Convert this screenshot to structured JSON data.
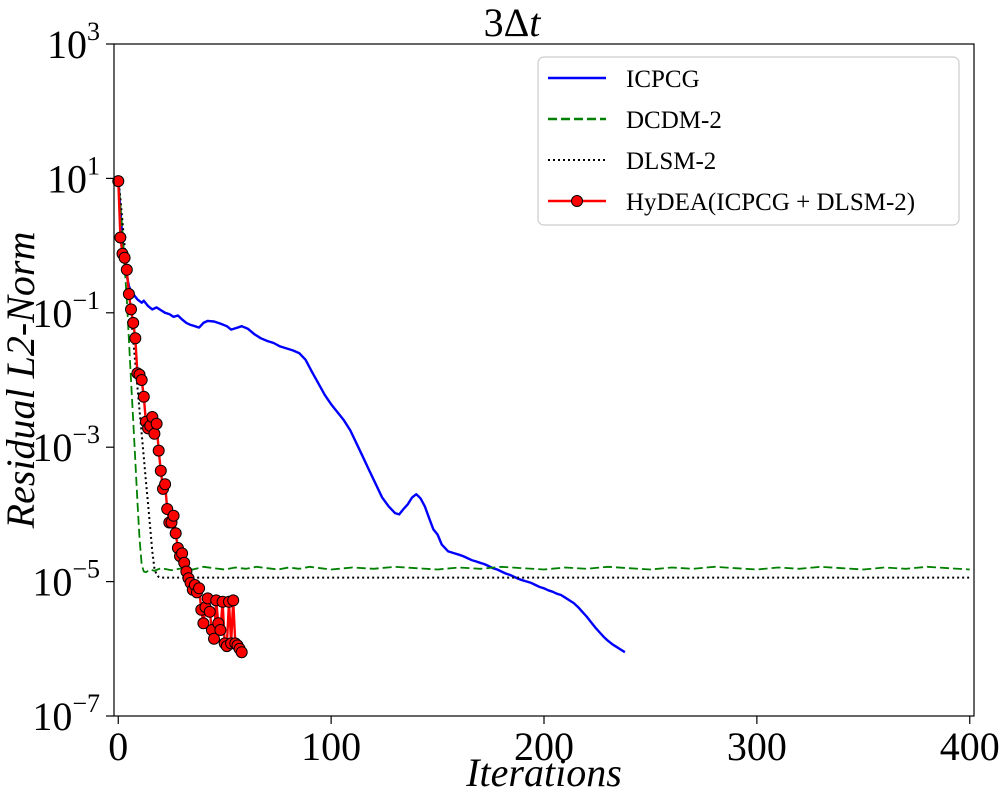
{
  "chart_data": {
    "type": "line",
    "title": "3Δt",
    "xlabel": "Iterations",
    "ylabel": "Residual L2-Norm",
    "xlim": [
      -2,
      402
    ],
    "ylim_log10": [
      -7,
      3
    ],
    "yscale": "log",
    "x_ticks": [
      0,
      100,
      200,
      300,
      400
    ],
    "x_tick_labels": [
      "0",
      "100",
      "200",
      "300",
      "400"
    ],
    "y_ticks_log10": [
      -7,
      -5,
      -3,
      -1,
      1,
      3
    ],
    "y_tick_base": "10",
    "y_tick_exponents": [
      "−7",
      "−5",
      "−3",
      "−1",
      "1",
      "3"
    ],
    "legend_position": "top-right",
    "series": [
      {
        "name": "ICPCG",
        "color": "#0000ff",
        "style": "solid",
        "points_log10": [
          [
            0,
            1.0
          ],
          [
            1,
            0.5
          ],
          [
            2,
            0.1
          ],
          [
            3,
            -0.25
          ],
          [
            4,
            -0.45
          ],
          [
            5,
            -0.6
          ],
          [
            6,
            -0.68
          ],
          [
            7,
            -0.72
          ],
          [
            9,
            -0.8
          ],
          [
            11,
            -0.85
          ],
          [
            12,
            -0.82
          ],
          [
            14,
            -0.9
          ],
          [
            16,
            -0.95
          ],
          [
            18,
            -0.92
          ],
          [
            20,
            -0.96
          ],
          [
            22,
            -1.0
          ],
          [
            24,
            -1.02
          ],
          [
            26,
            -1.06
          ],
          [
            28,
            -1.04
          ],
          [
            30,
            -1.1
          ],
          [
            32,
            -1.15
          ],
          [
            34,
            -1.18
          ],
          [
            36,
            -1.2
          ],
          [
            38,
            -1.22
          ],
          [
            40,
            -1.15
          ],
          [
            42,
            -1.12
          ],
          [
            45,
            -1.13
          ],
          [
            48,
            -1.16
          ],
          [
            51,
            -1.2
          ],
          [
            53,
            -1.25
          ],
          [
            56,
            -1.22
          ],
          [
            58,
            -1.2
          ],
          [
            61,
            -1.24
          ],
          [
            64,
            -1.32
          ],
          [
            67,
            -1.38
          ],
          [
            70,
            -1.42
          ],
          [
            73,
            -1.45
          ],
          [
            76,
            -1.5
          ],
          [
            79,
            -1.53
          ],
          [
            82,
            -1.56
          ],
          [
            85,
            -1.6
          ],
          [
            88,
            -1.7
          ],
          [
            91,
            -1.88
          ],
          [
            94,
            -2.05
          ],
          [
            97,
            -2.22
          ],
          [
            100,
            -2.36
          ],
          [
            103,
            -2.48
          ],
          [
            106,
            -2.6
          ],
          [
            109,
            -2.75
          ],
          [
            112,
            -2.95
          ],
          [
            115,
            -3.15
          ],
          [
            118,
            -3.35
          ],
          [
            121,
            -3.55
          ],
          [
            124,
            -3.75
          ],
          [
            127,
            -3.88
          ],
          [
            130,
            -3.98
          ],
          [
            132,
            -4.0
          ],
          [
            134,
            -3.92
          ],
          [
            136,
            -3.85
          ],
          [
            138,
            -3.75
          ],
          [
            140,
            -3.7
          ],
          [
            142,
            -3.76
          ],
          [
            144,
            -3.88
          ],
          [
            146,
            -4.05
          ],
          [
            148,
            -4.22
          ],
          [
            150,
            -4.3
          ],
          [
            152,
            -4.45
          ],
          [
            155,
            -4.55
          ],
          [
            158,
            -4.58
          ],
          [
            160,
            -4.6
          ],
          [
            162,
            -4.62
          ],
          [
            164,
            -4.65
          ],
          [
            166,
            -4.68
          ],
          [
            168,
            -4.7
          ],
          [
            170,
            -4.72
          ],
          [
            172,
            -4.74
          ],
          [
            174,
            -4.77
          ],
          [
            176,
            -4.8
          ],
          [
            178,
            -4.82
          ],
          [
            180,
            -4.85
          ],
          [
            182,
            -4.88
          ],
          [
            184,
            -4.9
          ],
          [
            186,
            -4.93
          ],
          [
            188,
            -4.96
          ],
          [
            190,
            -4.98
          ],
          [
            192,
            -5.0
          ],
          [
            194,
            -5.02
          ],
          [
            196,
            -5.05
          ],
          [
            198,
            -5.08
          ],
          [
            200,
            -5.1
          ],
          [
            202,
            -5.13
          ],
          [
            204,
            -5.15
          ],
          [
            206,
            -5.18
          ],
          [
            208,
            -5.2
          ],
          [
            210,
            -5.24
          ],
          [
            212,
            -5.28
          ],
          [
            214,
            -5.32
          ],
          [
            216,
            -5.38
          ],
          [
            218,
            -5.45
          ],
          [
            220,
            -5.52
          ],
          [
            222,
            -5.6
          ],
          [
            224,
            -5.68
          ],
          [
            226,
            -5.75
          ],
          [
            228,
            -5.82
          ],
          [
            230,
            -5.88
          ],
          [
            232,
            -5.93
          ],
          [
            234,
            -5.97
          ],
          [
            236,
            -6.01
          ],
          [
            238,
            -6.05
          ]
        ]
      },
      {
        "name": "DCDM-2",
        "color": "#008000",
        "style": "dashed",
        "points_log10": [
          [
            0,
            1.0
          ],
          [
            1,
            0.6
          ],
          [
            2,
            0.2
          ],
          [
            3,
            -0.3
          ],
          [
            4,
            -0.8
          ],
          [
            5,
            -1.4
          ],
          [
            6,
            -2.0
          ],
          [
            7,
            -2.6
          ],
          [
            8,
            -3.2
          ],
          [
            9,
            -3.8
          ],
          [
            10,
            -4.35
          ],
          [
            11,
            -4.75
          ],
          [
            12,
            -4.85
          ],
          [
            13,
            -4.86
          ],
          [
            15,
            -4.82
          ],
          [
            17,
            -4.84
          ],
          [
            20,
            -4.8
          ],
          [
            25,
            -4.83
          ],
          [
            30,
            -4.8
          ],
          [
            35,
            -4.82
          ],
          [
            40,
            -4.78
          ],
          [
            45,
            -4.8
          ],
          [
            50,
            -4.82
          ],
          [
            55,
            -4.79
          ],
          [
            60,
            -4.81
          ],
          [
            65,
            -4.78
          ],
          [
            70,
            -4.8
          ],
          [
            75,
            -4.82
          ],
          [
            80,
            -4.79
          ],
          [
            85,
            -4.81
          ],
          [
            90,
            -4.78
          ],
          [
            95,
            -4.8
          ],
          [
            100,
            -4.82
          ],
          [
            110,
            -4.79
          ],
          [
            120,
            -4.81
          ],
          [
            130,
            -4.78
          ],
          [
            140,
            -4.8
          ],
          [
            150,
            -4.82
          ],
          [
            160,
            -4.79
          ],
          [
            170,
            -4.81
          ],
          [
            180,
            -4.78
          ],
          [
            190,
            -4.8
          ],
          [
            200,
            -4.82
          ],
          [
            210,
            -4.79
          ],
          [
            220,
            -4.81
          ],
          [
            230,
            -4.78
          ],
          [
            240,
            -4.8
          ],
          [
            250,
            -4.82
          ],
          [
            260,
            -4.79
          ],
          [
            270,
            -4.81
          ],
          [
            280,
            -4.78
          ],
          [
            290,
            -4.8
          ],
          [
            300,
            -4.82
          ],
          [
            310,
            -4.79
          ],
          [
            320,
            -4.81
          ],
          [
            330,
            -4.78
          ],
          [
            340,
            -4.8
          ],
          [
            350,
            -4.82
          ],
          [
            360,
            -4.79
          ],
          [
            370,
            -4.81
          ],
          [
            380,
            -4.78
          ],
          [
            390,
            -4.8
          ],
          [
            400,
            -4.82
          ]
        ]
      },
      {
        "name": "DLSM-2",
        "color": "#000000",
        "style": "dotted",
        "points_log10": [
          [
            0,
            1.0
          ],
          [
            1,
            0.7
          ],
          [
            2,
            0.35
          ],
          [
            3,
            0.0
          ],
          [
            4,
            -0.35
          ],
          [
            5,
            -0.7
          ],
          [
            6,
            -1.05
          ],
          [
            7,
            -1.4
          ],
          [
            8,
            -1.75
          ],
          [
            9,
            -2.1
          ],
          [
            10,
            -2.45
          ],
          [
            11,
            -2.8
          ],
          [
            12,
            -3.15
          ],
          [
            13,
            -3.5
          ],
          [
            14,
            -3.85
          ],
          [
            15,
            -4.2
          ],
          [
            16,
            -4.55
          ],
          [
            17,
            -4.8
          ],
          [
            18,
            -4.9
          ],
          [
            19,
            -4.93
          ],
          [
            20,
            -4.94
          ],
          [
            30,
            -4.94
          ],
          [
            50,
            -4.94
          ],
          [
            100,
            -4.94
          ],
          [
            150,
            -4.94
          ],
          [
            200,
            -4.94
          ],
          [
            250,
            -4.94
          ],
          [
            300,
            -4.94
          ],
          [
            350,
            -4.94
          ],
          [
            400,
            -4.94
          ]
        ]
      },
      {
        "name": "HyDEA(ICPCG + DLSM-2)",
        "color": "#ff0000",
        "style": "solid-markers",
        "points_log10": [
          [
            0,
            0.96
          ],
          [
            1,
            0.12
          ],
          [
            2,
            -0.12
          ],
          [
            3,
            -0.18
          ],
          [
            4,
            -0.36
          ],
          [
            5,
            -0.72
          ],
          [
            6,
            -0.95
          ],
          [
            7,
            -1.15
          ],
          [
            8,
            -1.38
          ],
          [
            9,
            -1.9
          ],
          [
            10,
            -1.92
          ],
          [
            11,
            -2.0
          ],
          [
            12,
            -2.25
          ],
          [
            13,
            -2.62
          ],
          [
            14,
            -2.72
          ],
          [
            15,
            -2.68
          ],
          [
            16,
            -2.55
          ],
          [
            17,
            -2.8
          ],
          [
            18,
            -2.65
          ],
          [
            19,
            -3.05
          ],
          [
            20,
            -3.35
          ],
          [
            21,
            -3.62
          ],
          [
            22,
            -3.55
          ],
          [
            23,
            -3.92
          ],
          [
            24,
            -4.12
          ],
          [
            25,
            -4.12
          ],
          [
            26,
            -4.02
          ],
          [
            27,
            -4.28
          ],
          [
            28,
            -4.5
          ],
          [
            29,
            -4.62
          ],
          [
            30,
            -4.58
          ],
          [
            31,
            -4.72
          ],
          [
            32,
            -4.85
          ],
          [
            33,
            -4.95
          ],
          [
            34,
            -5.02
          ],
          [
            35,
            -5.12
          ],
          [
            36,
            -5.05
          ],
          [
            37,
            -5.16
          ],
          [
            38,
            -5.1
          ],
          [
            39,
            -5.42
          ],
          [
            40,
            -5.62
          ],
          [
            41,
            -5.38
          ],
          [
            42,
            -5.25
          ],
          [
            43,
            -5.45
          ],
          [
            44,
            -5.72
          ],
          [
            45,
            -5.85
          ],
          [
            46,
            -5.28
          ],
          [
            47,
            -5.62
          ],
          [
            48,
            -5.72
          ],
          [
            49,
            -5.3
          ],
          [
            50,
            -5.92
          ],
          [
            51,
            -5.96
          ],
          [
            52,
            -5.3
          ],
          [
            53,
            -5.92
          ],
          [
            54,
            -5.28
          ],
          [
            55,
            -5.92
          ],
          [
            56,
            -5.95
          ],
          [
            57,
            -6.0
          ],
          [
            58,
            -6.05
          ]
        ]
      }
    ]
  }
}
